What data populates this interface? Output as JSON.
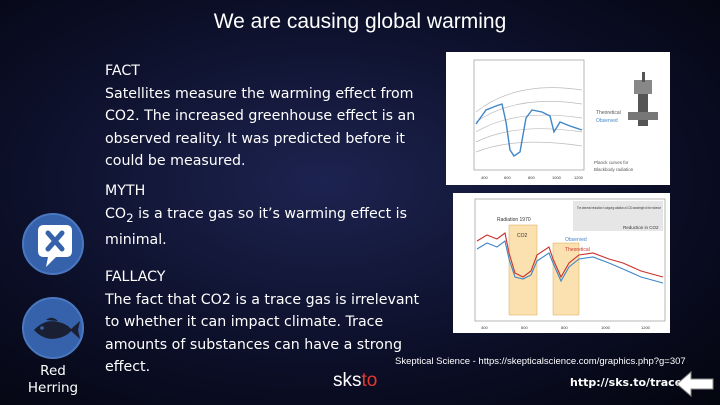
{
  "title": "We are causing global warming",
  "fact": {
    "heading": "FACT",
    "text": "Satellites measure the warming effect from CO2. The increased greenhouse effect is an observed reality. It was predicted before it could be measured."
  },
  "myth": {
    "heading": "MYTH",
    "text_before": "CO",
    "subscript": "2",
    "text_after": " is a trace gas so it’s warming effect is minimal."
  },
  "fallacy": {
    "heading": "FALLACY",
    "text": "The fact that CO2 is a trace gas is irrelevant to whether it can impact climate. Trace amounts of substances can have a strong effect.",
    "icon_label": "Red Herring"
  },
  "icons": {
    "myth": "speech-bubble-x-icon",
    "fallacy": "fish-icon"
  },
  "figures": {
    "top_labels": [
      "Theoretical",
      "Observed",
      "Planck curves for",
      "Blackbody radiation"
    ],
    "bottom_labels": [
      "The observed reduction in outgoing radiation at CO2 wavelength is the evidence",
      "Radiation 1970",
      "CO2",
      "Observed",
      "Theoretical",
      "Reduction in CO2"
    ]
  },
  "caption": "Skeptical Science - https://skepticalscience.com/graphics.php?g=307",
  "logo": {
    "part1": "sks",
    "part2": "to"
  },
  "url": "http://sks.to/trace",
  "colors": {
    "icon_blue": "#3562ab",
    "logo_red": "#e03a2f",
    "series_blue": "#3f86c7",
    "series_red": "#c9322b"
  }
}
